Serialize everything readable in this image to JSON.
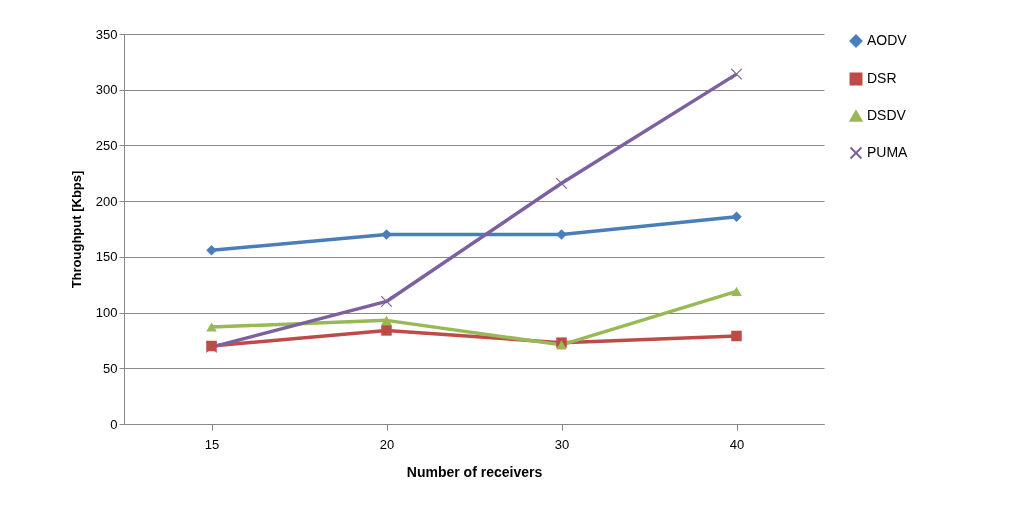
{
  "chart_data": {
    "type": "line",
    "xlabel": "Number of receivers",
    "ylabel": "Throughput [Kbps]",
    "categories": [
      "15",
      "20",
      "30",
      "40"
    ],
    "ylim": [
      0,
      350
    ],
    "yticks": [
      0,
      50,
      100,
      150,
      200,
      250,
      300,
      350
    ],
    "grid": "y",
    "legend": "right",
    "series": [
      {
        "name": "AODV",
        "color": "#4a7ebb",
        "marker": "diamond",
        "values": [
          156,
          170,
          170,
          186
        ]
      },
      {
        "name": "DSR",
        "color": "#be4b48",
        "marker": "square",
        "values": [
          70,
          84,
          73,
          79
        ]
      },
      {
        "name": "DSDV",
        "color": "#98b954",
        "marker": "triangle",
        "values": [
          87,
          93,
          71,
          119
        ]
      },
      {
        "name": "PUMA",
        "color": "#7d60a0",
        "marker": "cross",
        "values": [
          69,
          110,
          216,
          314
        ]
      }
    ]
  }
}
